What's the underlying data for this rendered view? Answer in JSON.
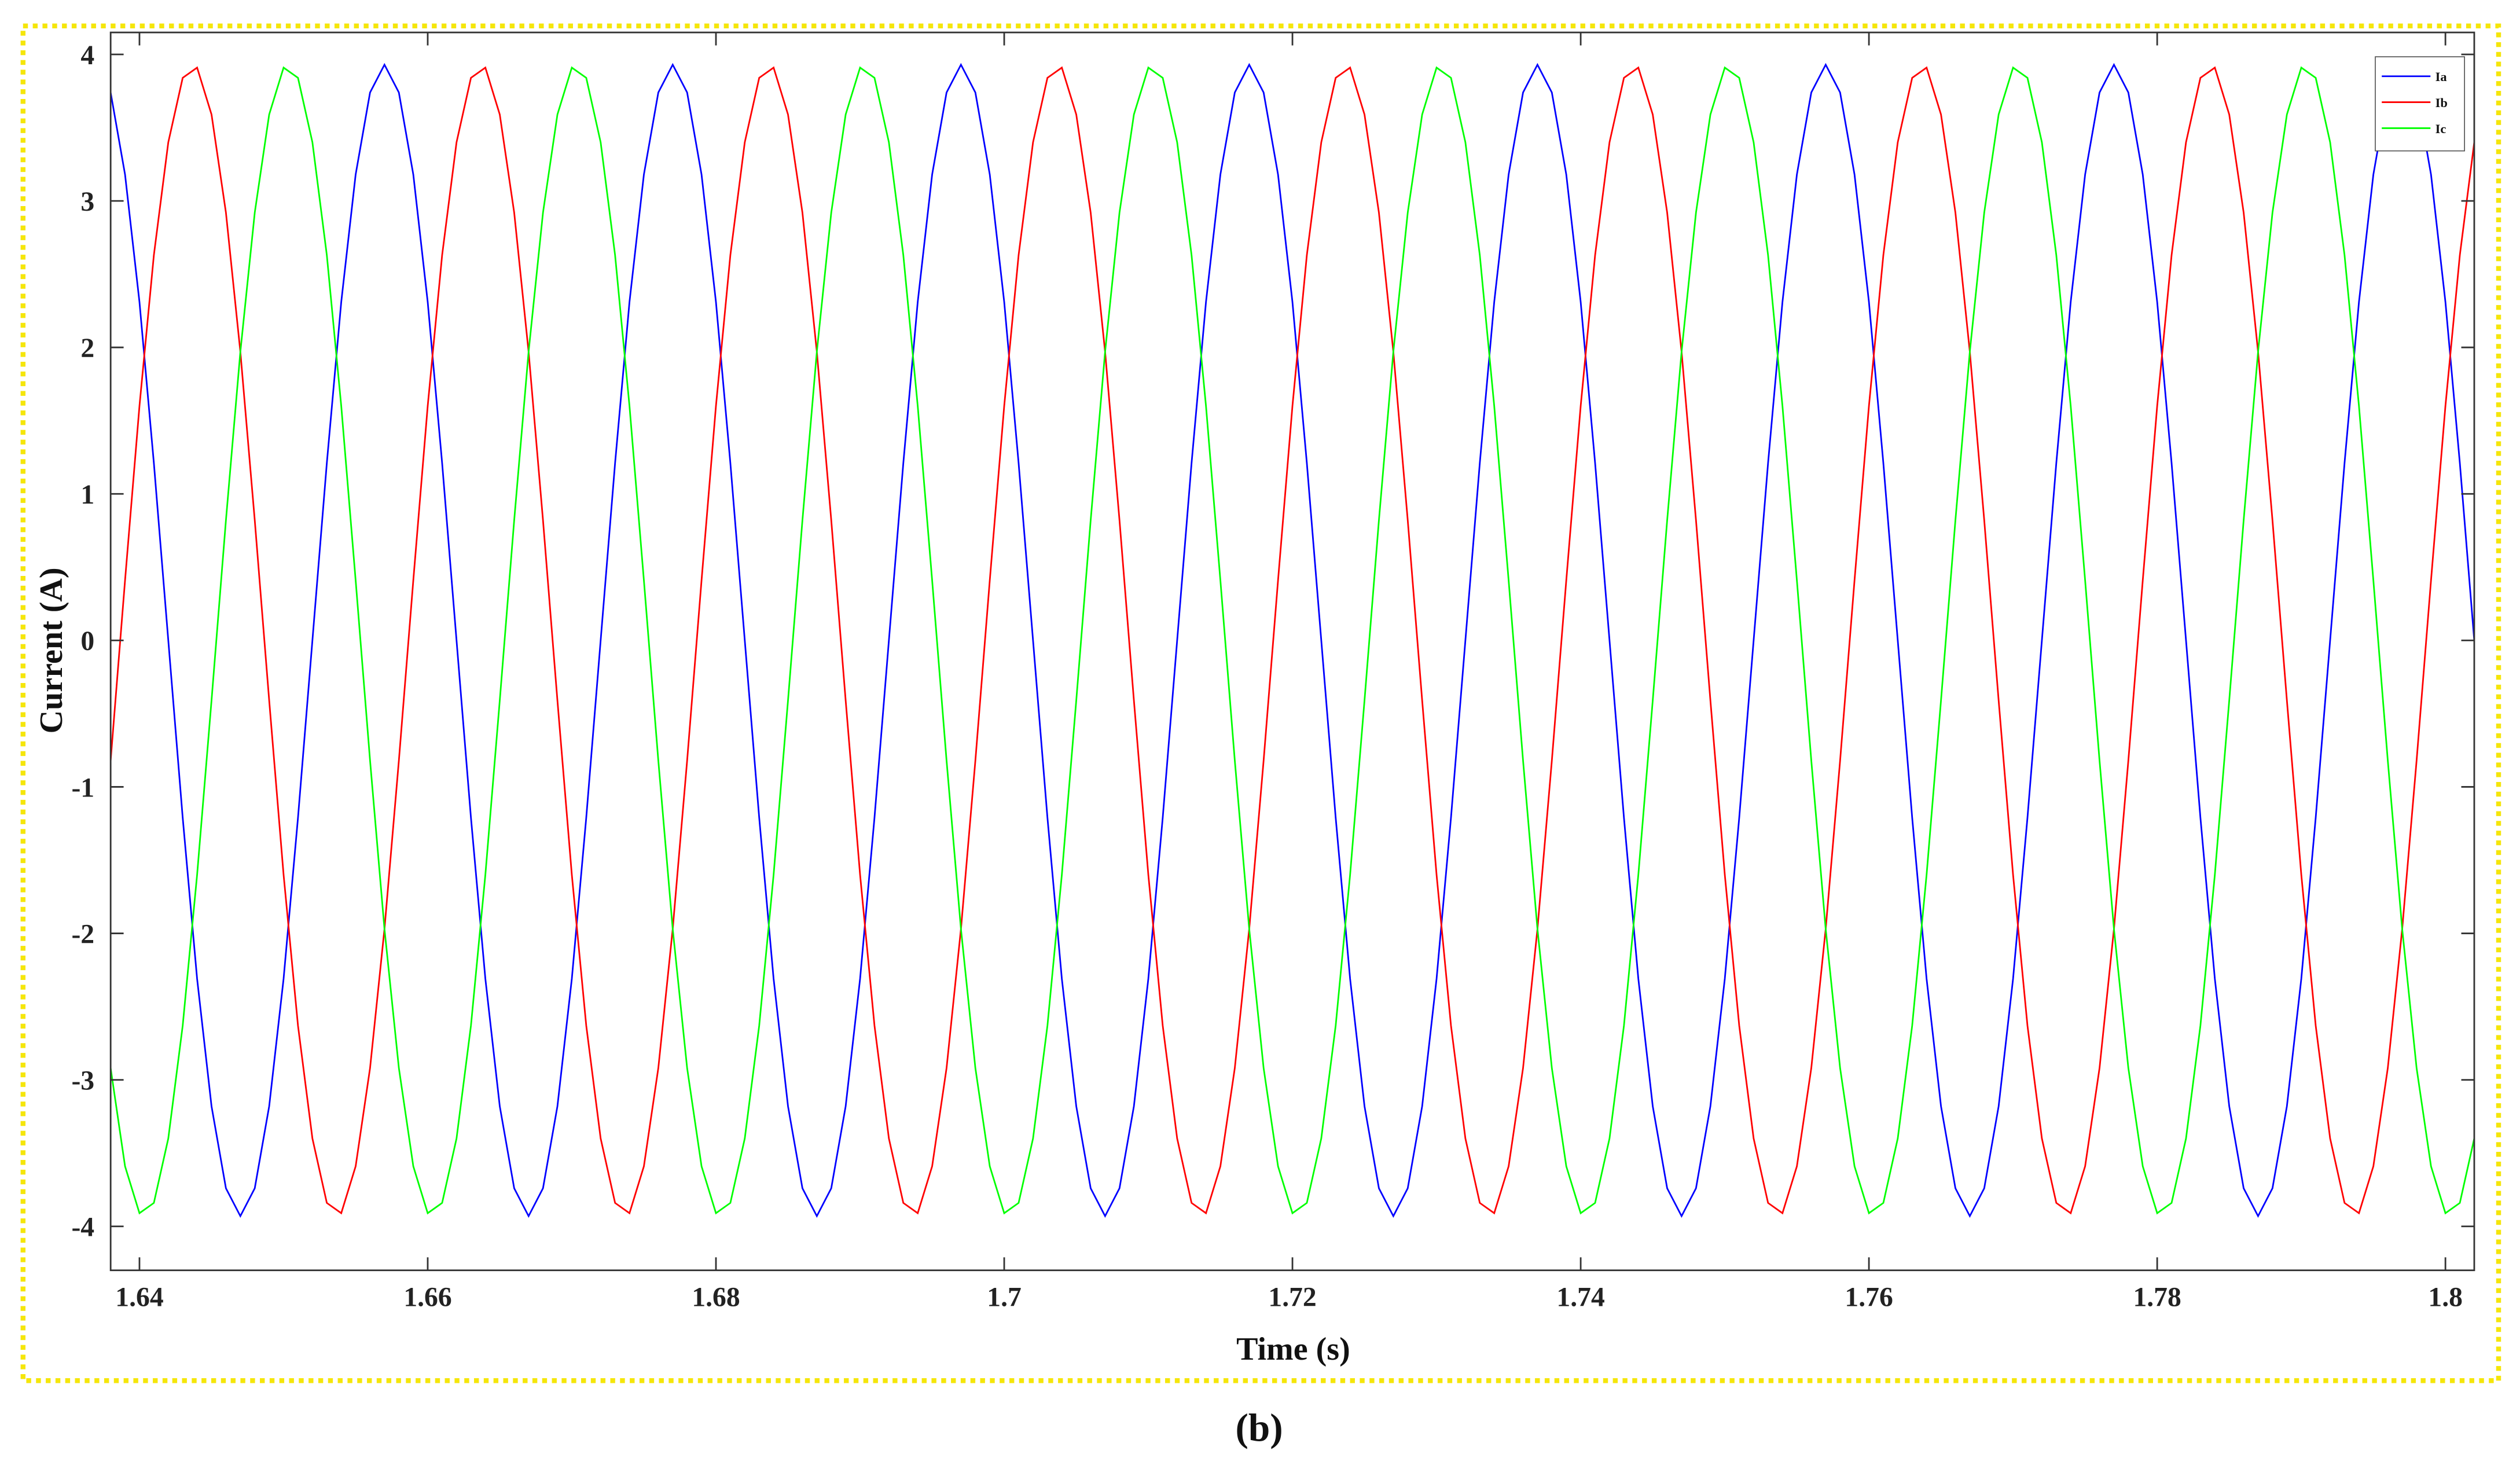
{
  "chart_data": {
    "type": "line",
    "xlabel": "Time (s)",
    "ylabel": "Current (A)",
    "caption": "(b)",
    "xlim": [
      1.638,
      1.802
    ],
    "ylim": [
      -4.3,
      4.15
    ],
    "xticks": [
      1.64,
      1.66,
      1.68,
      1.7,
      1.72,
      1.74,
      1.76,
      1.78,
      1.8
    ],
    "yticks": [
      -4,
      -3,
      -2,
      -1,
      0,
      1,
      2,
      3,
      4
    ],
    "grid": false,
    "legend": "upper right",
    "x": [
      1.638,
      1.639,
      1.64,
      1.641,
      1.642,
      1.643,
      1.644,
      1.645,
      1.646,
      1.647,
      1.648,
      1.649,
      1.65,
      1.651,
      1.652,
      1.653,
      1.654,
      1.655,
      1.656,
      1.657,
      1.658,
      1.659,
      1.66,
      1.661,
      1.662,
      1.663,
      1.664,
      1.665,
      1.666,
      1.667,
      1.668,
      1.669,
      1.67,
      1.671,
      1.672,
      1.673,
      1.674,
      1.675,
      1.676,
      1.677,
      1.678,
      1.679,
      1.68,
      1.681,
      1.682,
      1.683,
      1.684,
      1.685,
      1.686,
      1.687,
      1.688,
      1.689,
      1.69,
      1.691,
      1.692,
      1.693,
      1.694,
      1.695,
      1.696,
      1.697,
      1.698,
      1.699,
      1.7,
      1.701,
      1.702,
      1.703,
      1.704,
      1.705,
      1.706,
      1.707,
      1.708,
      1.709,
      1.71,
      1.711,
      1.712,
      1.713,
      1.714,
      1.715,
      1.716,
      1.717,
      1.718,
      1.719,
      1.72,
      1.721,
      1.722,
      1.723,
      1.724,
      1.725,
      1.726,
      1.727,
      1.728,
      1.729,
      1.73,
      1.731,
      1.732,
      1.733,
      1.734,
      1.735,
      1.736,
      1.737,
      1.738,
      1.739,
      1.74,
      1.741,
      1.742,
      1.743,
      1.744,
      1.745,
      1.746,
      1.747,
      1.748,
      1.749,
      1.75,
      1.751,
      1.752,
      1.753,
      1.754,
      1.755,
      1.756,
      1.757,
      1.758,
      1.759,
      1.76,
      1.761,
      1.762,
      1.763,
      1.764,
      1.765,
      1.766,
      1.767,
      1.768,
      1.769,
      1.77,
      1.771,
      1.772,
      1.773,
      1.774,
      1.775,
      1.776,
      1.777,
      1.778,
      1.779,
      1.78,
      1.781,
      1.782,
      1.783,
      1.784,
      1.785,
      1.786,
      1.787,
      1.788,
      1.789,
      1.79,
      1.791,
      1.792,
      1.793,
      1.794,
      1.795,
      1.796,
      1.797,
      1.798,
      1.799,
      1.8,
      1.801,
      1.802
    ],
    "series": [
      {
        "name": "Ia",
        "color": "#0000ff",
        "values": [
          3.74,
          3.18,
          2.31,
          1.21,
          0,
          -1.21,
          -2.31,
          -3.18,
          -3.74,
          -3.93,
          -3.74,
          -3.18,
          -2.31,
          -1.21,
          0,
          1.21,
          2.31,
          3.18,
          3.74,
          3.93,
          3.74,
          3.18,
          2.31,
          1.21,
          0,
          -1.21,
          -2.31,
          -3.18,
          -3.74,
          -3.93,
          -3.74,
          -3.18,
          -2.31,
          -1.21,
          0,
          1.21,
          2.31,
          3.18,
          3.74,
          3.93,
          3.74,
          3.18,
          2.31,
          1.21,
          0,
          -1.21,
          -2.31,
          -3.18,
          -3.74,
          -3.93,
          -3.74,
          -3.18,
          -2.31,
          -1.21,
          0,
          1.21,
          2.31,
          3.18,
          3.74,
          3.93,
          3.74,
          3.18,
          2.31,
          1.21,
          0,
          -1.21,
          -2.31,
          -3.18,
          -3.74,
          -3.93,
          -3.74,
          -3.18,
          -2.31,
          -1.21,
          0,
          1.21,
          2.31,
          3.18,
          3.74,
          3.93,
          3.74,
          3.18,
          2.31,
          1.21,
          0,
          -1.21,
          -2.31,
          -3.18,
          -3.74,
          -3.93,
          -3.74,
          -3.18,
          -2.31,
          -1.21,
          0,
          1.21,
          2.31,
          3.18,
          3.74,
          3.93,
          3.74,
          3.18,
          2.31,
          1.21,
          0,
          -1.21,
          -2.31,
          -3.18,
          -3.74,
          -3.93,
          -3.74,
          -3.18,
          -2.31,
          -1.21,
          0,
          1.21,
          2.31,
          3.18,
          3.74,
          3.93,
          3.74,
          3.18,
          2.31,
          1.21,
          0,
          -1.21,
          -2.31,
          -3.18,
          -3.74,
          -3.93,
          -3.74,
          -3.18,
          -2.31,
          -1.21,
          0,
          1.21,
          2.31,
          3.18,
          3.74,
          3.93,
          3.74,
          3.18,
          2.31,
          1.21,
          0,
          -1.21,
          -2.31,
          -3.18,
          -3.74,
          -3.93,
          -3.74,
          -3.18,
          -2.31,
          -1.21,
          0,
          1.21,
          2.31,
          3.18,
          3.74,
          3.93,
          3.74,
          3.18,
          2.31,
          1.21,
          0
        ]
      },
      {
        "name": "Ib",
        "color": "#ff0000",
        "values": [
          -0.82,
          0.41,
          1.6,
          2.63,
          3.4,
          3.84,
          3.91,
          3.59,
          2.92,
          1.97,
          0.82,
          -0.41,
          -1.6,
          -2.63,
          -3.4,
          -3.84,
          -3.91,
          -3.59,
          -2.92,
          -1.97,
          -0.82,
          0.41,
          1.6,
          2.63,
          3.4,
          3.84,
          3.91,
          3.59,
          2.92,
          1.97,
          0.82,
          -0.41,
          -1.6,
          -2.63,
          -3.4,
          -3.84,
          -3.91,
          -3.59,
          -2.92,
          -1.97,
          -0.82,
          0.41,
          1.6,
          2.63,
          3.4,
          3.84,
          3.91,
          3.59,
          2.92,
          1.97,
          0.82,
          -0.41,
          -1.6,
          -2.63,
          -3.4,
          -3.84,
          -3.91,
          -3.59,
          -2.92,
          -1.97,
          -0.82,
          0.41,
          1.6,
          2.63,
          3.4,
          3.84,
          3.91,
          3.59,
          2.92,
          1.97,
          0.82,
          -0.41,
          -1.6,
          -2.63,
          -3.4,
          -3.84,
          -3.91,
          -3.59,
          -2.92,
          -1.97,
          -0.82,
          0.41,
          1.6,
          2.63,
          3.4,
          3.84,
          3.91,
          3.59,
          2.92,
          1.97,
          0.82,
          -0.41,
          -1.6,
          -2.63,
          -3.4,
          -3.84,
          -3.91,
          -3.59,
          -2.92,
          -1.97,
          -0.82,
          0.41,
          1.6,
          2.63,
          3.4,
          3.84,
          3.91,
          3.59,
          2.92,
          1.97,
          0.82,
          -0.41,
          -1.6,
          -2.63,
          -3.4,
          -3.84,
          -3.91,
          -3.59,
          -2.92,
          -1.97,
          -0.82,
          0.41,
          1.6,
          2.63,
          3.4,
          3.84,
          3.91,
          3.59,
          2.92,
          1.97,
          0.82,
          -0.41,
          -1.6,
          -2.63,
          -3.4,
          -3.84,
          -3.91,
          -3.59,
          -2.92,
          -1.97,
          -0.82,
          0.41,
          1.6,
          2.63,
          3.4,
          3.84,
          3.91,
          3.59,
          2.92,
          1.97,
          0.82,
          -0.41,
          -1.6,
          -2.63,
          -3.4,
          -3.84,
          -3.91,
          -3.59,
          -2.92,
          -1.97,
          -0.82,
          0.41,
          1.6,
          2.63,
          3.4
        ]
      },
      {
        "name": "Ic",
        "color": "#00ff00",
        "values": [
          -2.92,
          -3.59,
          -3.91,
          -3.84,
          -3.4,
          -2.63,
          -1.6,
          -0.41,
          0.82,
          1.97,
          2.92,
          3.59,
          3.91,
          3.84,
          3.4,
          2.63,
          1.6,
          0.41,
          -0.82,
          -1.97,
          -2.92,
          -3.59,
          -3.91,
          -3.84,
          -3.4,
          -2.63,
          -1.6,
          -0.41,
          0.82,
          1.97,
          2.92,
          3.59,
          3.91,
          3.84,
          3.4,
          2.63,
          1.6,
          0.41,
          -0.82,
          -1.97,
          -2.92,
          -3.59,
          -3.91,
          -3.84,
          -3.4,
          -2.63,
          -1.6,
          -0.41,
          0.82,
          1.97,
          2.92,
          3.59,
          3.91,
          3.84,
          3.4,
          2.63,
          1.6,
          0.41,
          -0.82,
          -1.97,
          -2.92,
          -3.59,
          -3.91,
          -3.84,
          -3.4,
          -2.63,
          -1.6,
          -0.41,
          0.82,
          1.97,
          2.92,
          3.59,
          3.91,
          3.84,
          3.4,
          2.63,
          1.6,
          0.41,
          -0.82,
          -1.97,
          -2.92,
          -3.59,
          -3.91,
          -3.84,
          -3.4,
          -2.63,
          -1.6,
          -0.41,
          0.82,
          1.97,
          2.92,
          3.59,
          3.91,
          3.84,
          3.4,
          2.63,
          1.6,
          0.41,
          -0.82,
          -1.97,
          -2.92,
          -3.59,
          -3.91,
          -3.84,
          -3.4,
          -2.63,
          -1.6,
          -0.41,
          0.82,
          1.97,
          2.92,
          3.59,
          3.91,
          3.84,
          3.4,
          2.63,
          1.6,
          0.41,
          -0.82,
          -1.97,
          -2.92,
          -3.59,
          -3.91,
          -3.84,
          -3.4,
          -2.63,
          -1.6,
          -0.41,
          0.82,
          1.97,
          2.92,
          3.59,
          3.91,
          3.84,
          3.4,
          2.63,
          1.6,
          0.41,
          -0.82,
          -1.97,
          -2.92,
          -3.59,
          -3.91,
          -3.84,
          -3.4,
          -2.63,
          -1.6,
          -0.41,
          0.82,
          1.97,
          2.92,
          3.59,
          3.91,
          3.84,
          3.4,
          2.63,
          1.6,
          0.41,
          -0.82,
          -1.97,
          -2.92,
          -3.59,
          -3.91,
          -3.84,
          -3.4
        ]
      }
    ]
  }
}
